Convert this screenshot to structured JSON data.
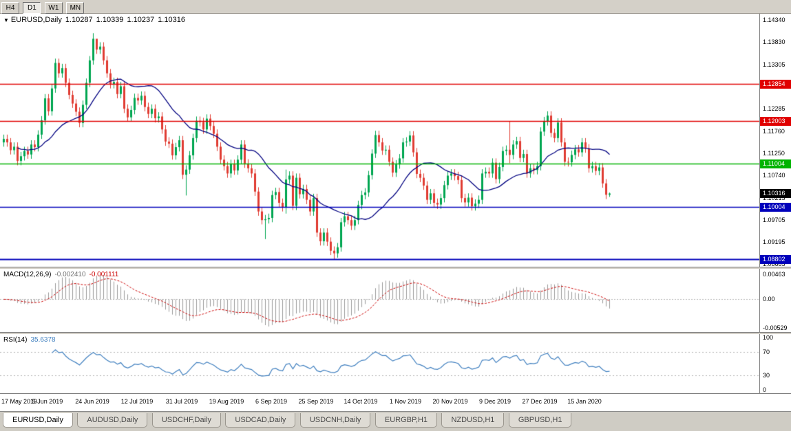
{
  "toolbar": {
    "buttons": [
      {
        "label": "H4",
        "active": false
      },
      {
        "label": "D1",
        "active": true
      },
      {
        "label": "W1",
        "active": false
      },
      {
        "label": "MN",
        "active": false
      }
    ]
  },
  "main": {
    "title": {
      "icon": "▼",
      "symbol": "EURUSD,Daily",
      "open": "1.10287",
      "high": "1.10339",
      "low": "1.10237",
      "close": "1.10316"
    },
    "y_axis_labels": [
      "1.14340",
      "1.13830",
      "1.13305",
      "1.12795",
      "1.12285",
      "1.11760",
      "1.11250",
      "1.10740",
      "1.10215",
      "1.09705",
      "1.09195",
      "1.08685"
    ],
    "price_badge": {
      "text": "1.10316",
      "price": 1.10316,
      "color": "#000000"
    }
  },
  "macd_panel": {
    "label": "MACD(12,26,9)",
    "main_value": "-0.002410",
    "signal_value": "-0.001111",
    "axis_labels": [
      {
        "text": "0.00463",
        "value": 0.00463
      },
      {
        "text": "0.00",
        "value": 0
      },
      {
        "text": "-0.00529",
        "value": -0.00529
      }
    ]
  },
  "rsi_panel": {
    "label": "RSI(14)",
    "value": "35.6378",
    "axis_labels": [
      {
        "text": "100",
        "value": 100
      },
      {
        "text": "70",
        "value": 70
      },
      {
        "text": "30",
        "value": 30
      },
      {
        "text": "0",
        "value": 0
      }
    ]
  },
  "tabs": [
    {
      "label": "EURUSD,Daily",
      "active": true
    },
    {
      "label": "AUDUSD,Daily",
      "active": false
    },
    {
      "label": "USDCHF,Daily",
      "active": false
    },
    {
      "label": "USDCAD,Daily",
      "active": false
    },
    {
      "label": "USDCNH,Daily",
      "active": false
    },
    {
      "label": "EURGBP,H1",
      "active": false
    },
    {
      "label": "NZDUSD,H1",
      "active": false
    },
    {
      "label": "GBPUSD,H1",
      "active": false
    }
  ],
  "chart_data": {
    "type": "candlestick",
    "symbol": "EURUSD",
    "timeframe": "Daily",
    "ohlc_display": {
      "open": 1.10287,
      "high": 1.10339,
      "low": 1.10237,
      "close": 1.10316
    },
    "price_range": {
      "max": 1.1448,
      "min": 1.0862
    },
    "x_labels": [
      {
        "index": 0,
        "text": "17 May 2019"
      },
      {
        "index": 13,
        "text": "5 Jun 2019"
      },
      {
        "index": 26,
        "text": "24 Jun 2019"
      },
      {
        "index": 39,
        "text": "12 Jul 2019"
      },
      {
        "index": 52,
        "text": "31 Jul 2019"
      },
      {
        "index": 65,
        "text": "19 Aug 2019"
      },
      {
        "index": 78,
        "text": "6 Sep 2019"
      },
      {
        "index": 91,
        "text": "25 Sep 2019"
      },
      {
        "index": 104,
        "text": "14 Oct 2019"
      },
      {
        "index": 117,
        "text": "1 Nov 2019"
      },
      {
        "index": 130,
        "text": "20 Nov 2019"
      },
      {
        "index": 143,
        "text": "9 Dec 2019"
      },
      {
        "index": 156,
        "text": "27 Dec 2019"
      },
      {
        "index": 169,
        "text": "15 Jan 2020"
      }
    ],
    "hlines": [
      {
        "price": 1.12854,
        "color": "#e00000",
        "badge": "1.12854",
        "width": 1.4
      },
      {
        "price": 1.12003,
        "color": "#e00000",
        "badge": "1.12003",
        "width": 1.4
      },
      {
        "price": 1.11004,
        "color": "#00b300",
        "badge": "1.11004",
        "width": 1.6
      },
      {
        "price": 1.10004,
        "color": "#0000bb",
        "badge": "1.10004",
        "width": 1.6
      },
      {
        "price": 1.08802,
        "color": "#0000bb",
        "badge": "1.08802",
        "width": 2.2
      }
    ],
    "candles": {
      "first_open": 1.115,
      "wick": 0.001,
      "closes": [
        1.1158,
        1.115,
        1.1132,
        1.114,
        1.1107,
        1.1118,
        1.113,
        1.1122,
        1.1145,
        1.1139,
        1.1168,
        1.1201,
        1.1252,
        1.1222,
        1.1275,
        1.1334,
        1.131,
        1.1322,
        1.1288,
        1.126,
        1.124,
        1.1221,
        1.1195,
        1.1237,
        1.1288,
        1.134,
        1.139,
        1.1365,
        1.1372,
        1.134,
        1.131,
        1.1285,
        1.129,
        1.1262,
        1.128,
        1.1228,
        1.1208,
        1.1225,
        1.1253,
        1.1247,
        1.1258,
        1.1232,
        1.1216,
        1.1228,
        1.1206,
        1.121,
        1.118,
        1.1152,
        1.1147,
        1.112,
        1.1139,
        1.1155,
        1.1075,
        1.1087,
        1.112,
        1.116,
        1.12,
        1.1197,
        1.118,
        1.1205,
        1.1188,
        1.117,
        1.114,
        1.111,
        1.1095,
        1.1078,
        1.11,
        1.1085,
        1.111,
        1.1145,
        1.1101,
        1.109,
        1.1078,
        1.1036,
        1.099,
        1.097,
        1.0972,
        1.0975,
        1.1028,
        1.1035,
        1.101,
        1.1,
        1.1064,
        1.1073,
        1.1003,
        1.1068,
        1.103,
        1.1042,
        1.1017,
        1.099,
        1.1021,
        1.0941,
        1.0921,
        1.0941,
        1.092,
        1.0899,
        1.0893,
        1.0907,
        1.0965,
        1.0979,
        1.097,
        1.0957,
        1.097,
        1.1005,
        1.1028,
        1.1034,
        1.1074,
        1.1124,
        1.1167,
        1.115,
        1.1131,
        1.1133,
        1.1105,
        1.108,
        1.1099,
        1.1113,
        1.115,
        1.1152,
        1.1166,
        1.1127,
        1.1077,
        1.1068,
        1.105,
        1.1017,
        1.1032,
        1.101,
        1.1006,
        1.1021,
        1.1051,
        1.1073,
        1.1078,
        1.1072,
        1.1063,
        1.1021,
        1.1011,
        1.1022,
        1.1002,
        1.1008,
        1.1017,
        1.1078,
        1.1082,
        1.1078,
        1.1103,
        1.1065,
        1.1093,
        1.113,
        1.1133,
        1.1121,
        1.1145,
        1.1153,
        1.1114,
        1.1123,
        1.1078,
        1.109,
        1.1086,
        1.1095,
        1.1175,
        1.1199,
        1.1212,
        1.1172,
        1.116,
        1.1196,
        1.115,
        1.1105,
        1.1104,
        1.1121,
        1.1134,
        1.1127,
        1.115,
        1.1136,
        1.109,
        1.1095,
        1.1084,
        1.1092,
        1.1055,
        1.10287,
        1.10316
      ],
      "overrides": {
        "26": {
          "h": 1.1403
        },
        "27": {
          "h": 1.1389
        },
        "53": {
          "l": 1.1027
        },
        "76": {
          "l": 1.0926
        },
        "82": {
          "h": 1.1087,
          "l": 1.0985
        },
        "96": {
          "l": 1.0879
        },
        "147": {
          "h": 1.1199,
          "l": 1.1102
        },
        "176": {
          "h": 1.10339,
          "l": 1.10237
        }
      }
    },
    "ma": {
      "period": 20,
      "color": "#000080"
    },
    "macd": {
      "fast": 12,
      "slow": 26,
      "signal": 9,
      "range": {
        "max": 0.0056,
        "min": -0.006
      },
      "hist_color": "#9a9a9a",
      "signal_color": "#cc0000",
      "zero_line_color": "#b4b4b4"
    },
    "rsi": {
      "period": 14,
      "range": {
        "max": 100,
        "min": 0
      },
      "levels": [
        70,
        30
      ],
      "color": "#3f7fbf",
      "level_color": "#b4b4b4"
    },
    "colors": {
      "up": "#00a651",
      "down": "#e03c32",
      "background": "#ffffff",
      "chrome": "#d4d0c8",
      "border": "#808080"
    }
  }
}
